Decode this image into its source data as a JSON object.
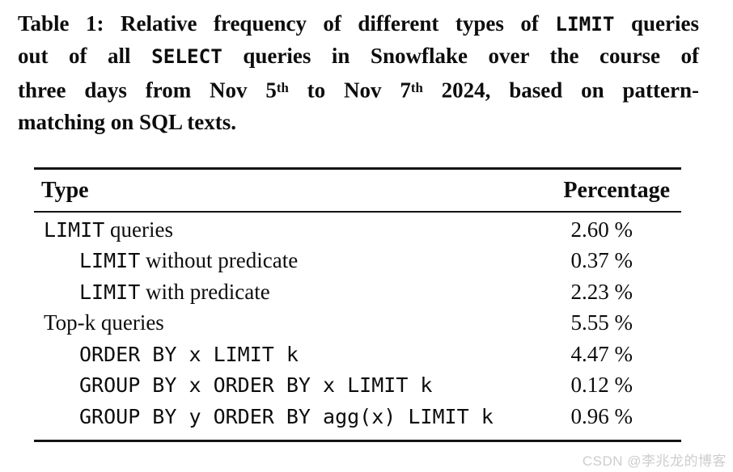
{
  "caption": {
    "line1": {
      "pre": "Table 1: Relative frequency of different types of ",
      "code": "LIMIT",
      "post": " queries"
    },
    "line2": {
      "pre": "out of all ",
      "code": "SELECT",
      "post": " queries in Snowflake over the course of"
    },
    "line3": {
      "seg1": "three days from Nov 5",
      "sup1": "th",
      "seg2": " to Nov 7",
      "sup2": "th",
      "seg3": " 2024, based on pattern-"
    },
    "line4": {
      "text": "matching on SQL texts."
    }
  },
  "table": {
    "headers": {
      "type": "Type",
      "percentage": "Percentage"
    },
    "rows": [
      {
        "mono": "LIMIT",
        "serif": " queries",
        "value": "2.60 %"
      },
      {
        "mono": "LIMIT",
        "serif": " without predicate",
        "value": "0.37 %"
      },
      {
        "mono": "LIMIT",
        "serif": " with predicate",
        "value": "2.23 %"
      },
      {
        "mono": "",
        "serif": "Top-k queries",
        "value": "5.55 %"
      },
      {
        "mono": "ORDER BY x LIMIT k",
        "serif": "",
        "value": "4.47 %"
      },
      {
        "mono": "GROUP BY x ORDER BY x LIMIT k",
        "serif": "",
        "value": "0.12 %"
      },
      {
        "mono": "GROUP BY y ORDER BY agg(x) LIMIT k",
        "serif": "",
        "value": "0.96 %"
      }
    ]
  },
  "watermark": {
    "text": "CSDN @李兆龙的博客"
  },
  "colors": {
    "text": "#0d0d0d",
    "rule": "#141414",
    "watermark": "#cdcdcd",
    "background": "#ffffff"
  }
}
